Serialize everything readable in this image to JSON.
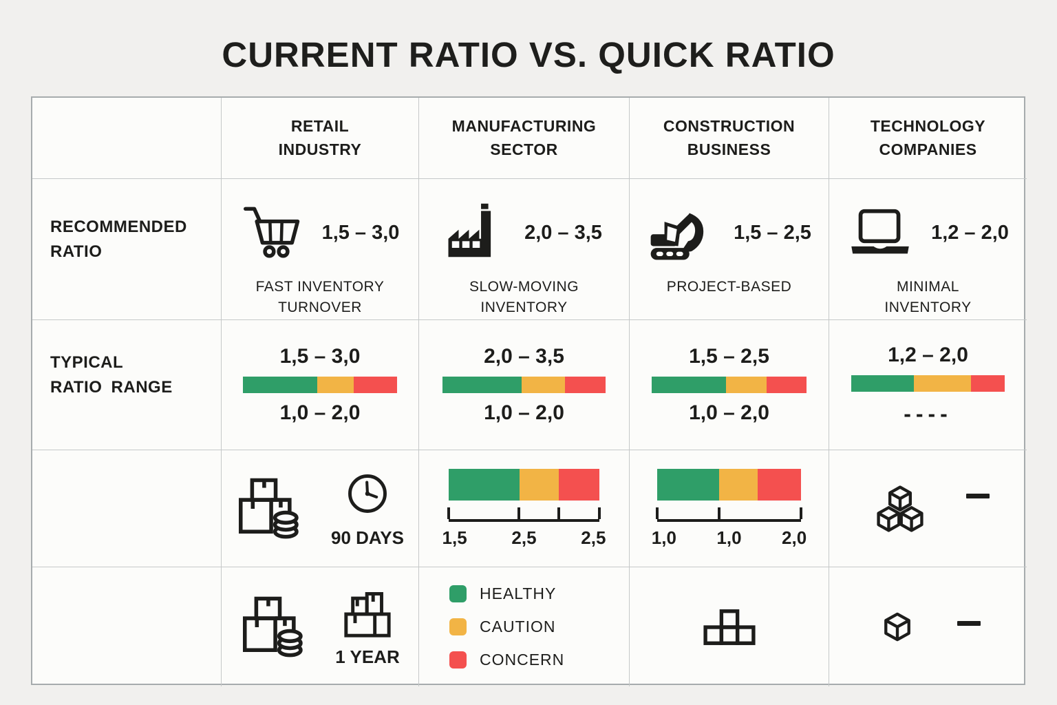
{
  "title": "CURRENT RATIO VS. QUICK RATIO",
  "legend_colors": {
    "healthy": "#2f9e68",
    "caution": "#f2b445",
    "concern": "#f4504f"
  },
  "header": {
    "retail": "RETAIL\nINDUSTRY",
    "manufacturing": "MANUFACTURING\nSECTOR",
    "construction": "CONSTRUCTION\nBUSINESS",
    "technology": "TECHNOLOGY\nCOMPANIES"
  },
  "recommended": {
    "label": "RECOMMENDED\nRATIO",
    "retail": {
      "icon": "shopping-cart",
      "value": "1,5 – 3,0",
      "note": "FAST INVENTORY\nTURNOVER"
    },
    "manufacturing": {
      "icon": "factory",
      "value": "2,0 – 3,5",
      "note": "SLOW-MOVING\nINVENTORY"
    },
    "construction": {
      "icon": "excavator",
      "value": "1,5 – 2,5",
      "note": "PROJECT-BASED"
    },
    "technology": {
      "icon": "laptop",
      "value": "1,2 – 2,0",
      "note": "MINIMAL\nINVENTORY"
    }
  },
  "typical": {
    "label": "TYPICAL\nRATIO  RANGE",
    "retail": {
      "current_ratio": "1,5 – 3,0",
      "quick_ratio": "1,0 – 2,0",
      "bar": {
        "green": 48,
        "yellow": 24,
        "red": 28
      }
    },
    "manufacturing": {
      "current_ratio": "2,0 – 3,5",
      "quick_ratio": "1,0 – 2,0",
      "bar": {
        "green": 48.5,
        "yellow": 26.5,
        "red": 25
      }
    },
    "construction": {
      "current_ratio": "1,5 – 2,5",
      "quick_ratio": "1,0 – 2,0",
      "bar": {
        "green": 48,
        "yellow": 26,
        "red": 26
      }
    },
    "technology": {
      "current_ratio": "1,2 – 2,0",
      "quick_ratio": "----",
      "bar": {
        "green": 41,
        "yellow": 37,
        "red": 22
      }
    }
  },
  "scales": {
    "retail": {
      "icons": [
        "inventory-boxes-coins",
        "clock"
      ],
      "caption": "90 DAYS"
    },
    "manufacturing": {
      "bar": {
        "green": 47,
        "yellow": 26,
        "red": 27
      },
      "ticks": [
        0,
        46.5,
        73,
        100
      ],
      "labels": [
        "1,5",
        "2,5",
        "2,5"
      ]
    },
    "construction": {
      "bar": {
        "green": 43,
        "yellow": 27,
        "red": 30
      },
      "ticks": [
        0,
        43,
        100
      ],
      "labels": [
        "1,0",
        "1,0",
        "2,0"
      ]
    },
    "technology": {
      "icons": [
        "stacked-cubes",
        "minus-dash"
      ]
    }
  },
  "bottom": {
    "retail": {
      "icons": [
        "inventory-boxes-coins",
        "stacked-boxes"
      ],
      "caption": "1 YEAR"
    },
    "legend": [
      {
        "label": "HEALTHY",
        "color": "#2f9e68"
      },
      {
        "label": "CAUTION",
        "color": "#f2b445"
      },
      {
        "label": "CONCERN",
        "color": "#f4504f"
      }
    ],
    "construction": {
      "icons": [
        "tetris-blocks"
      ]
    },
    "technology": {
      "icons": [
        "cube",
        "minus-dash"
      ]
    }
  }
}
